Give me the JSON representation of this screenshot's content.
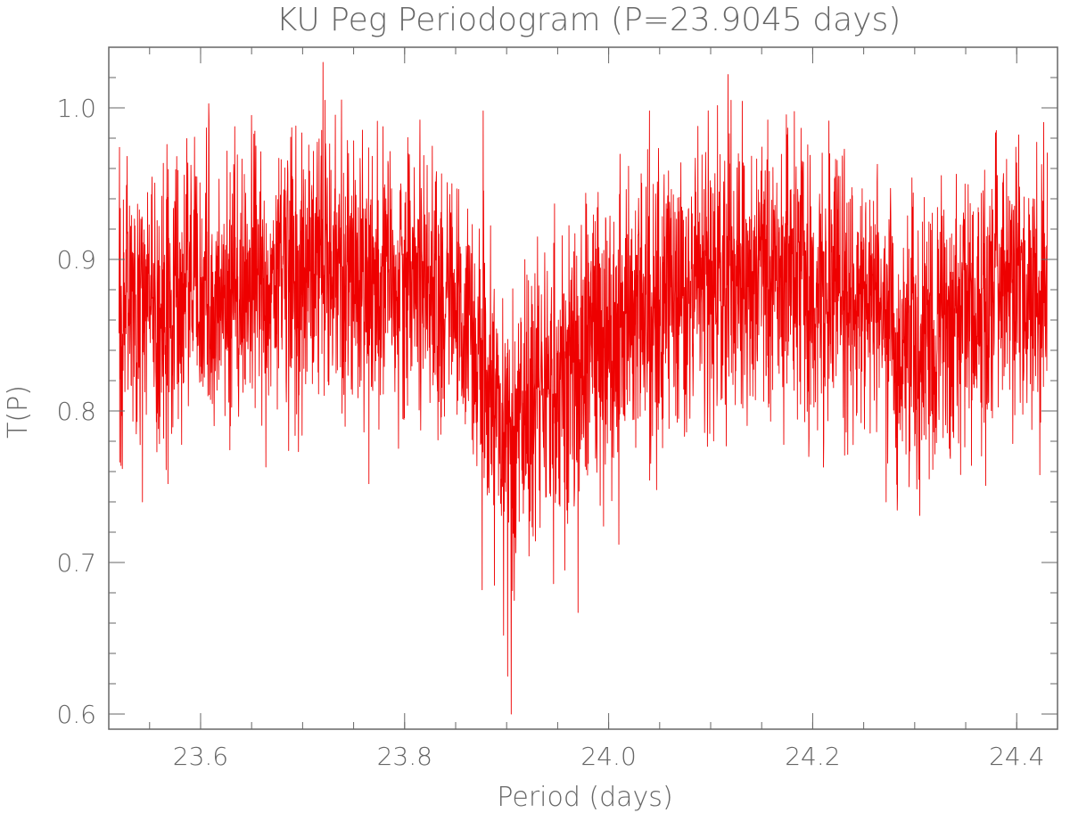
{
  "chart_data": {
    "type": "line",
    "title": "KU Peg Periodogram (P=23.9045 days)",
    "xlabel": "Period (days)",
    "ylabel": "T(P)",
    "xlim": [
      23.51,
      24.44
    ],
    "ylim": [
      0.59,
      1.04
    ],
    "grid": false,
    "x_major_ticks": [
      23.6,
      23.8,
      24.0,
      24.2,
      24.4
    ],
    "x_tick_labels": [
      "23.6",
      "23.8",
      "24.0",
      "24.2",
      "24.4"
    ],
    "y_major_ticks": [
      0.6,
      0.7,
      0.8,
      0.9,
      1.0
    ],
    "y_tick_labels": [
      "0.6",
      "0.7",
      "0.8",
      "0.9",
      "1.0"
    ],
    "x_minor_step": 0.05,
    "y_minor_step": 0.02,
    "series": [
      {
        "name": "T(P)",
        "color": "#ee0000",
        "x_start": 23.52,
        "x_end": 24.43,
        "trend": {
          "x": [
            23.52,
            23.55,
            23.6,
            23.65,
            23.7,
            23.75,
            23.8,
            23.84,
            23.87,
            23.885,
            23.9,
            23.92,
            23.95,
            23.98,
            24.0,
            24.03,
            24.06,
            24.1,
            24.15,
            24.2,
            24.25,
            24.28,
            24.31,
            24.34,
            24.38,
            24.43
          ],
          "y": [
            0.872,
            0.868,
            0.877,
            0.884,
            0.888,
            0.893,
            0.89,
            0.872,
            0.845,
            0.808,
            0.78,
            0.795,
            0.825,
            0.845,
            0.855,
            0.868,
            0.878,
            0.885,
            0.888,
            0.885,
            0.87,
            0.85,
            0.845,
            0.858,
            0.875,
            0.88
          ]
        },
        "noise_amplitude": 0.045,
        "samples": 3600,
        "peaks": [
          {
            "x": 23.72,
            "y": 1.03
          },
          {
            "x": 23.722,
            "y": 1.005
          },
          {
            "x": 24.117,
            "y": 1.022
          },
          {
            "x": 24.12,
            "y": 1.005
          },
          {
            "x": 23.877,
            "y": 0.998
          },
          {
            "x": 24.04,
            "y": 0.998
          },
          {
            "x": 23.528,
            "y": 0.968
          },
          {
            "x": 23.815,
            "y": 0.992
          },
          {
            "x": 24.38,
            "y": 0.985
          }
        ],
        "troughs": [
          {
            "x": 23.9045,
            "y": 0.6
          },
          {
            "x": 23.901,
            "y": 0.625
          },
          {
            "x": 23.897,
            "y": 0.652
          },
          {
            "x": 23.888,
            "y": 0.685
          },
          {
            "x": 23.9075,
            "y": 0.675
          },
          {
            "x": 23.957,
            "y": 0.695
          },
          {
            "x": 23.97,
            "y": 0.667
          },
          {
            "x": 23.946,
            "y": 0.686
          },
          {
            "x": 23.876,
            "y": 0.682
          },
          {
            "x": 23.995,
            "y": 0.724
          },
          {
            "x": 24.01,
            "y": 0.712
          },
          {
            "x": 23.543,
            "y": 0.74
          },
          {
            "x": 23.522,
            "y": 0.764
          },
          {
            "x": 23.568,
            "y": 0.752
          },
          {
            "x": 23.664,
            "y": 0.763
          },
          {
            "x": 23.765,
            "y": 0.752
          },
          {
            "x": 24.047,
            "y": 0.748
          },
          {
            "x": 24.272,
            "y": 0.74
          },
          {
            "x": 24.305,
            "y": 0.731
          },
          {
            "x": 24.345,
            "y": 0.758
          }
        ]
      }
    ]
  }
}
